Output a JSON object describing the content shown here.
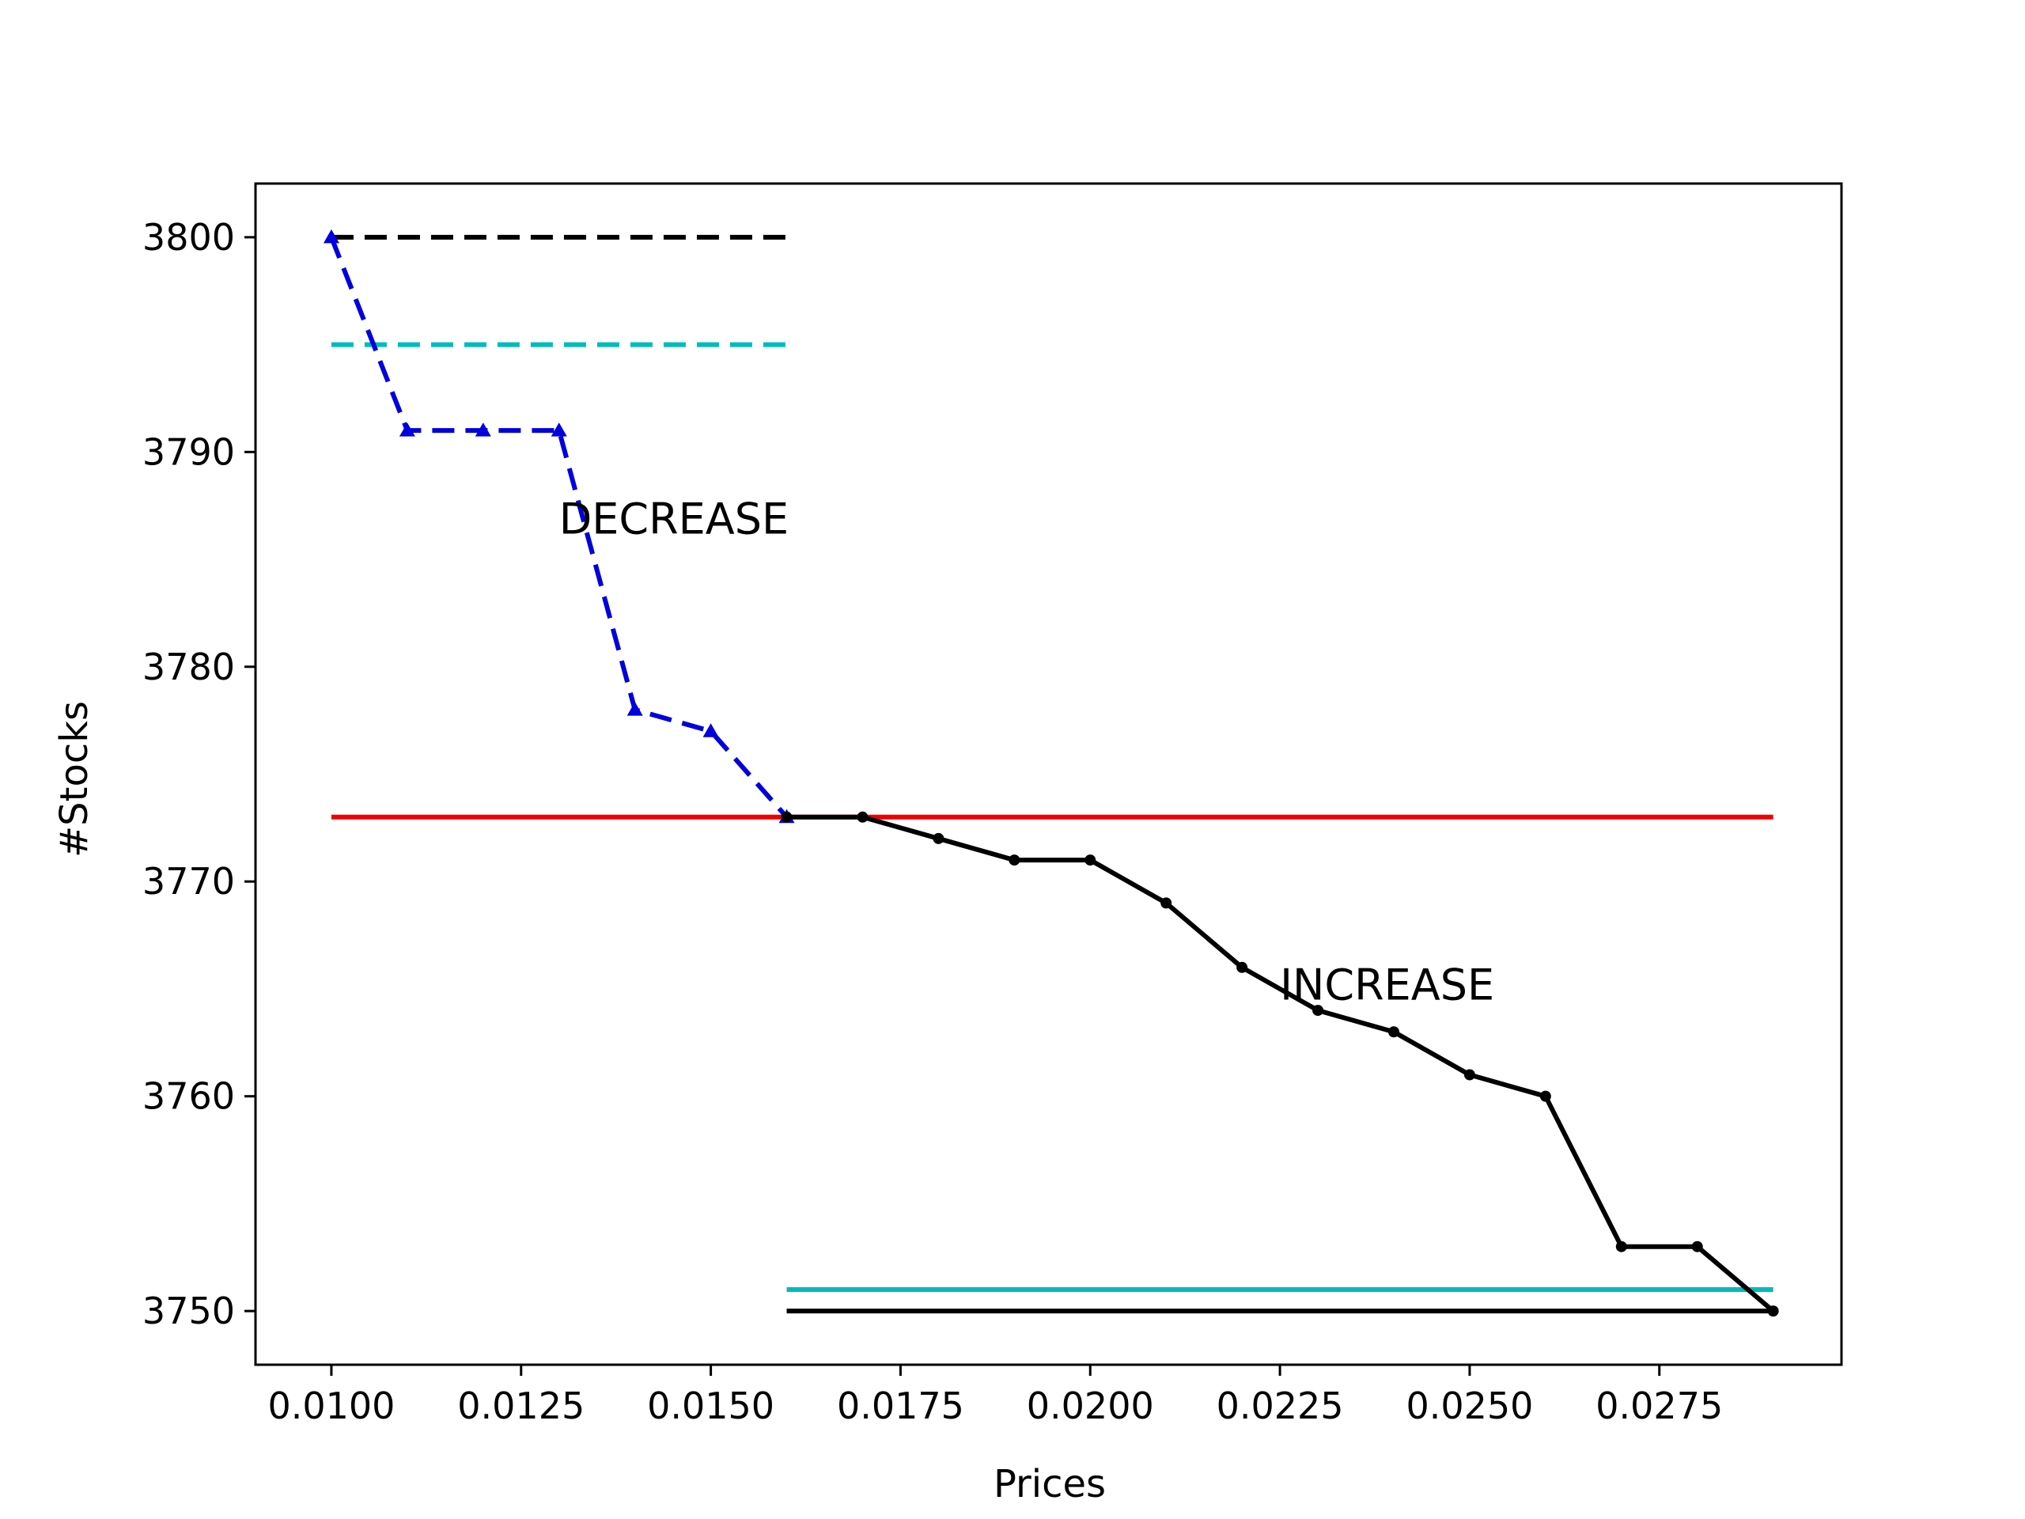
{
  "chart_data": {
    "type": "line",
    "title": "",
    "xlabel": "Prices",
    "ylabel": "#Stocks",
    "xlim": [
      0.009,
      0.0299
    ],
    "ylim": [
      3747.5,
      3802.5
    ],
    "xticks": [
      0.01,
      0.0125,
      0.015,
      0.0175,
      0.02,
      0.0225,
      0.025,
      0.0275
    ],
    "xtick_labels": [
      "0.0100",
      "0.0125",
      "0.0150",
      "0.0175",
      "0.0200",
      "0.0225",
      "0.0250",
      "0.0275"
    ],
    "yticks": [
      3750,
      3760,
      3770,
      3780,
      3790,
      3800
    ],
    "ytick_labels": [
      "3750",
      "3760",
      "3770",
      "3780",
      "3790",
      "3800"
    ],
    "grid": false,
    "series": [
      {
        "style": "dashed",
        "marker": "triangle",
        "color": "#0000dd",
        "x": [
          0.01,
          0.011,
          0.012,
          0.013,
          0.014,
          0.015,
          0.016
        ],
        "y": [
          3800,
          3791,
          3791,
          3791,
          3778,
          3777,
          3773
        ]
      },
      {
        "style": "solid",
        "marker": "dot",
        "color": "#000000",
        "x": [
          0.016,
          0.017,
          0.018,
          0.019,
          0.02,
          0.021,
          0.022,
          0.023,
          0.024,
          0.025,
          0.026,
          0.027,
          0.028,
          0.029
        ],
        "y": [
          3773,
          3773,
          3772,
          3771,
          3771,
          3769,
          3766,
          3764,
          3763,
          3761,
          3760,
          3753,
          3753,
          3750
        ]
      }
    ],
    "reference_lines": [
      {
        "y": 3800,
        "x": [
          0.01,
          0.016
        ],
        "style": "dashed",
        "color": "#000000"
      },
      {
        "y": 3795,
        "x": [
          0.01,
          0.016
        ],
        "style": "dashed",
        "color": "#00bbbb"
      },
      {
        "y": 3773,
        "x": [
          0.01,
          0.029
        ],
        "style": "solid",
        "color": "#ee0000"
      },
      {
        "y": 3751,
        "x": [
          0.016,
          0.029
        ],
        "style": "solid",
        "color": "#00bbbb"
      },
      {
        "y": 3750,
        "x": [
          0.016,
          0.029
        ],
        "style": "solid",
        "color": "#000000"
      }
    ],
    "annotations": [
      {
        "text": "DECREASE",
        "x": 0.013,
        "y": 3786.2
      },
      {
        "text": "INCREASE",
        "x": 0.0225,
        "y": 3764.5
      }
    ]
  }
}
